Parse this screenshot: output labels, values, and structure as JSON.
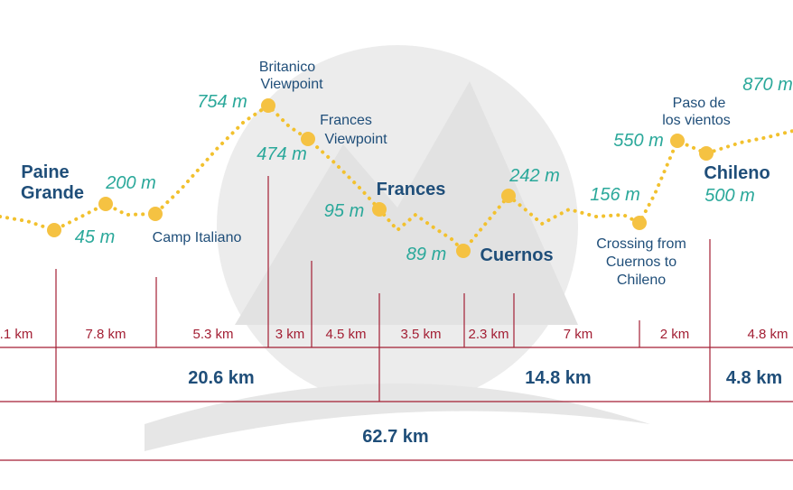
{
  "elevations": [
    "45 m",
    "200 m",
    "754 m",
    "474 m",
    "95 m",
    "89 m",
    "242 m",
    "156 m",
    "550 m",
    "500 m",
    "870 m"
  ],
  "places": [
    {
      "lines": [
        "Paine",
        "Grande"
      ]
    },
    {
      "lines": [
        "Camp Italiano"
      ]
    },
    {
      "lines": [
        "Britanico",
        "Viewpoint"
      ]
    },
    {
      "lines": [
        "Frances",
        "Viewpoint"
      ]
    },
    {
      "lines": [
        "Frances"
      ]
    },
    {
      "lines": [
        "Cuernos"
      ]
    },
    {
      "lines": [
        "Crossing from",
        "Cuernos to",
        "Chileno"
      ]
    },
    {
      "lines": [
        "Paso de",
        "los vientos"
      ]
    },
    {
      "lines": [
        "Chileno"
      ]
    }
  ],
  "segments": [
    ".1 km",
    "7.8 km",
    "5.3 km",
    "3 km",
    "4.5 km",
    "3.5 km",
    "2.3 km",
    "7 km",
    "2 km",
    "4.8 km"
  ],
  "sections": [
    "20.6 km",
    "14.8 km",
    "4.8 km"
  ],
  "total": "62.7 km"
}
